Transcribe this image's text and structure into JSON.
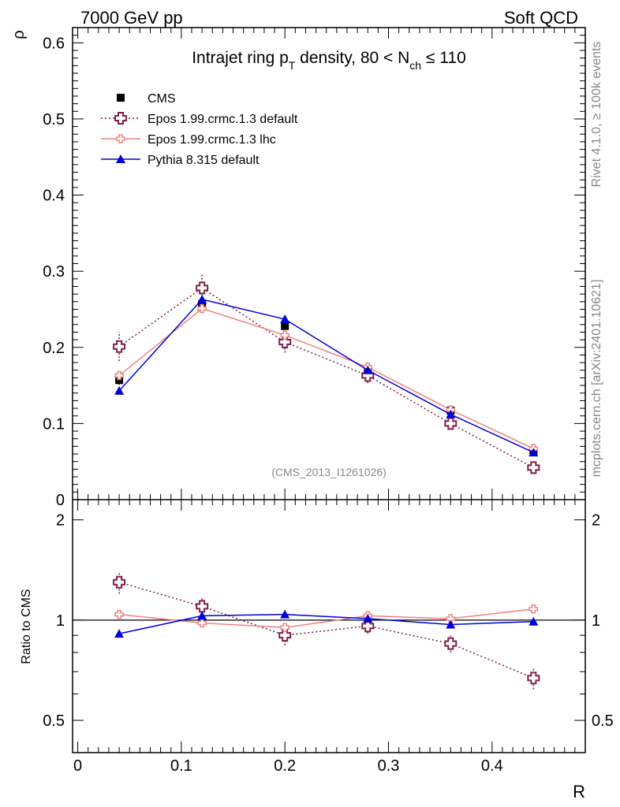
{
  "header": {
    "left_label": "7000 GeV pp",
    "right_label": "Soft QCD"
  },
  "side_labels": {
    "rivet": "Rivet 4.1.0, ≥ 100k events",
    "mcplots": "mcplots.cern.ch [arXiv:2401.10621]"
  },
  "chart_data": {
    "type": "line",
    "title_main": "Intrajet ring p",
    "title_sub1": "T",
    "title_mid": " density, 80 < N",
    "title_sub2": "ch",
    "title_end": " ≤ 110",
    "analysis_id": "(CMS_2013_I1261026)",
    "xlabel": "R",
    "ylabel_top": "ρ",
    "ylabel_bottom": "Ratio to CMS",
    "xlim": [
      -0.005,
      0.49
    ],
    "ylim_top": [
      0,
      0.62
    ],
    "ylim_bottom_log": [
      0.4,
      2.3
    ],
    "x_ticks": [
      {
        "value": 0,
        "label": "0"
      },
      {
        "value": 0.1,
        "label": "0.1"
      },
      {
        "value": 0.2,
        "label": "0.2"
      },
      {
        "value": 0.3,
        "label": "0.3"
      },
      {
        "value": 0.4,
        "label": "0.4"
      }
    ],
    "y_ticks_top": [
      {
        "value": 0,
        "label": "0"
      },
      {
        "value": 0.1,
        "label": "0.1"
      },
      {
        "value": 0.2,
        "label": "0.2"
      },
      {
        "value": 0.3,
        "label": "0.3"
      },
      {
        "value": 0.4,
        "label": "0.4"
      },
      {
        "value": 0.5,
        "label": "0.5"
      },
      {
        "value": 0.6,
        "label": "0.6"
      }
    ],
    "y_ticks_bottom": [
      {
        "value": 0.5,
        "label": "0.5"
      },
      {
        "value": 1,
        "label": "1"
      },
      {
        "value": 2,
        "label": "2"
      }
    ],
    "x": [
      0.04,
      0.12,
      0.2,
      0.28,
      0.36,
      0.44
    ],
    "series": [
      {
        "name": "CMS",
        "style": "data",
        "color": "#000000",
        "values": [
          0.157,
          0.257,
          0.228,
          0.17,
          0.117,
          0.063
        ],
        "errors": [
          0.006,
          0.006,
          0.005,
          0.004,
          0.003,
          0.002
        ],
        "ratio": [
          1,
          1,
          1,
          1,
          1,
          1
        ]
      },
      {
        "name": "Epos 1.99.crmc.1.3 default",
        "style": "dotted-cross",
        "color": "#7f1f4a",
        "values": [
          0.201,
          0.278,
          0.207,
          0.163,
          0.1,
          0.042
        ],
        "errors": [
          0.019,
          0.018,
          0.014,
          0.01,
          0.007,
          0.004
        ],
        "ratio": [
          1.3,
          1.1,
          0.9,
          0.96,
          0.85,
          0.67
        ],
        "ratio_errors": [
          0.1,
          0.07,
          0.06,
          0.05,
          0.05,
          0.05
        ]
      },
      {
        "name": "Epos 1.99.crmc.1.3 lhc",
        "style": "solid-cross",
        "color": "#f08080",
        "values": [
          0.163,
          0.251,
          0.216,
          0.174,
          0.118,
          0.067
        ],
        "errors": [
          0.004,
          0.005,
          0.004,
          0.003,
          0.002,
          0.002
        ],
        "ratio": [
          1.04,
          0.98,
          0.95,
          1.03,
          1.01,
          1.08
        ],
        "ratio_errors": [
          0.025,
          0.02,
          0.02,
          0.02,
          0.02,
          0.02
        ]
      },
      {
        "name": "Pythia 8.315 default",
        "style": "solid-triangle",
        "color": "#0000dd",
        "values": [
          0.143,
          0.263,
          0.237,
          0.17,
          0.112,
          0.062
        ],
        "errors": [
          0.003,
          0.004,
          0.004,
          0.003,
          0.002,
          0.002
        ],
        "ratio": [
          0.91,
          1.03,
          1.04,
          1.01,
          0.97,
          0.99
        ],
        "ratio_errors": [
          0.02,
          0.02,
          0.02,
          0.02,
          0.02,
          0.02
        ]
      }
    ]
  }
}
